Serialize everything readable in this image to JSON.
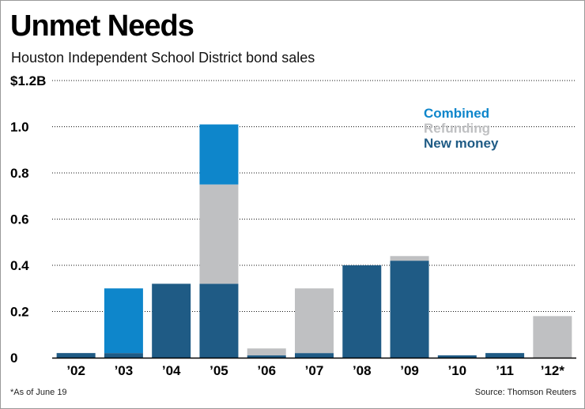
{
  "header": {
    "title": "Unmet Needs",
    "subtitle": "Houston Independent School District bond sales"
  },
  "footer": {
    "footnote": "*As of June 19",
    "source": "Source: Thomson Reuters"
  },
  "colors": {
    "new_money": "#1f5b85",
    "refunding": "#bfc0c2",
    "combined": "#0e86cb",
    "gridline": "#111111",
    "axis_text": "#000000"
  },
  "chart_data": {
    "type": "bar",
    "stacked": true,
    "title": "Unmet Needs",
    "subtitle": "Houston Independent School District bond sales",
    "xlabel": "",
    "ylabel": "",
    "ylim": [
      0,
      1.2
    ],
    "yticks": [
      {
        "value": 0,
        "label": "0"
      },
      {
        "value": 0.2,
        "label": "0.2"
      },
      {
        "value": 0.4,
        "label": "0.4"
      },
      {
        "value": 0.6,
        "label": "0.6"
      },
      {
        "value": 0.8,
        "label": "0.8"
      },
      {
        "value": 1.0,
        "label": "1.0"
      },
      {
        "value": 1.2,
        "label": "$1.2B"
      }
    ],
    "grid": true,
    "legend": "top-right",
    "categories": [
      "’02",
      "’03",
      "’04",
      "’05",
      "’06",
      "’07",
      "’08",
      "’09",
      "’10",
      "’11",
      "’12*"
    ],
    "series": [
      {
        "name": "New money",
        "key": "new_money",
        "values": [
          0.02,
          0.02,
          0.32,
          0.32,
          0.01,
          0.02,
          0.4,
          0.42,
          0.01,
          0.02,
          0
        ]
      },
      {
        "name": "Refunding",
        "key": "refunding",
        "values": [
          0,
          0,
          0,
          0.43,
          0.03,
          0.28,
          0,
          0.02,
          0,
          0,
          0.18
        ]
      },
      {
        "name": "Combined",
        "key": "combined",
        "values": [
          0,
          0.28,
          0,
          0.26,
          0,
          0,
          0,
          0,
          0,
          0,
          0
        ]
      }
    ],
    "legend_order": [
      "Combined",
      "Refunding",
      "New money"
    ]
  }
}
